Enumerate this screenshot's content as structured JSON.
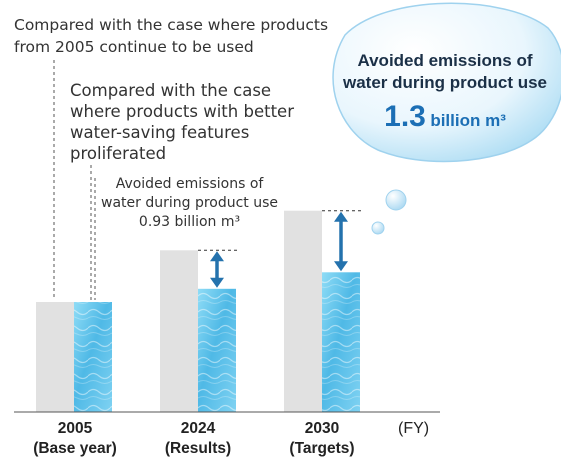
{
  "notes": {
    "baseline_line1": "Compared with the case where products",
    "baseline_line2": "from 2005 continue to be used",
    "improved_line1": "Compared with the case",
    "improved_line2": "where products with better",
    "improved_line3": "water-saving features",
    "improved_line4": "proliferated",
    "avoided_2024_line1": "Avoided emissions of",
    "avoided_2024_line2": "water during product use",
    "avoided_2024_value": "0.93 billion m³"
  },
  "bubble": {
    "line1": "Avoided emissions of",
    "line2": "water during product use",
    "value": "1.3",
    "unit": "billion m³"
  },
  "colors": {
    "baseline_bar": "#e1e1e1",
    "water_bar": "#5cc5ea",
    "arrow": "#2472ad"
  },
  "chart_data": {
    "type": "bar",
    "categories": [
      "2005",
      "2024",
      "2030"
    ],
    "category_sublabels": [
      "(Base year)",
      "(Results)",
      "(Targets)"
    ],
    "x_unit": "(FY)",
    "series": [
      {
        "values": [
          1.0,
          1.47,
          1.83
        ]
      },
      {
        "values": [
          1.0,
          1.12,
          1.27
        ]
      }
    ],
    "annotations": [
      {
        "category": "2024",
        "label": "0.93 billion m³"
      },
      {
        "category": "2030",
        "label": "1.3 billion m³"
      }
    ],
    "ylim": [
      0,
      2.0
    ],
    "grid": false
  }
}
